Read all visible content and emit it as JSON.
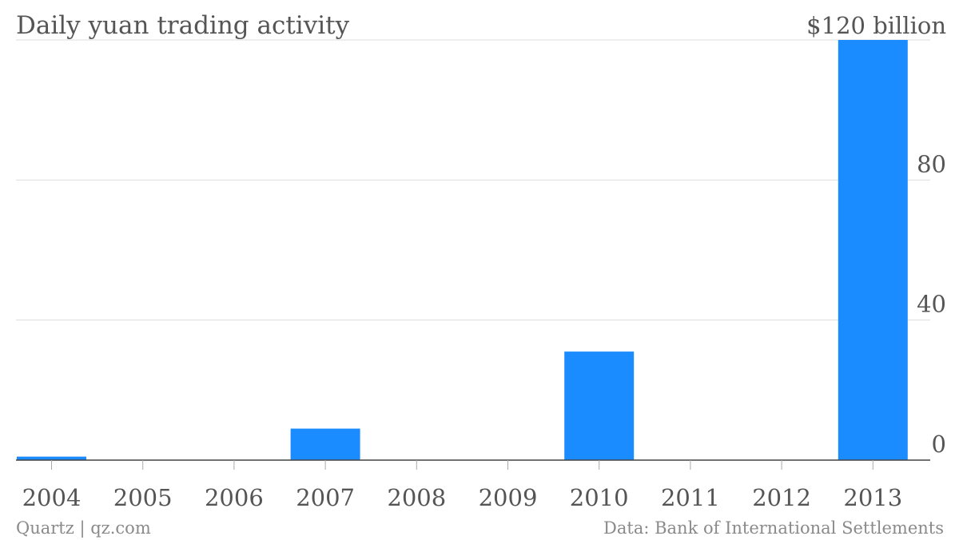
{
  "chart_data": {
    "type": "bar",
    "title": "Daily yuan trading activity",
    "categories": [
      "2004",
      "2005",
      "2006",
      "2007",
      "2008",
      "2009",
      "2010",
      "2011",
      "2012",
      "2013"
    ],
    "values": [
      1,
      null,
      null,
      9,
      null,
      null,
      31,
      null,
      null,
      120
    ],
    "ylim": [
      0,
      120
    ],
    "yticks": [
      {
        "value": 0,
        "label": "0"
      },
      {
        "value": 40,
        "label": "40"
      },
      {
        "value": 80,
        "label": "80"
      },
      {
        "value": 120,
        "label": "$120 billion"
      }
    ],
    "grid": true,
    "y_axis_side": "right",
    "bar_color": "#1a8cff"
  },
  "footer": {
    "left": "Quartz | qz.com",
    "right": "Data: Bank of International Settlements"
  }
}
